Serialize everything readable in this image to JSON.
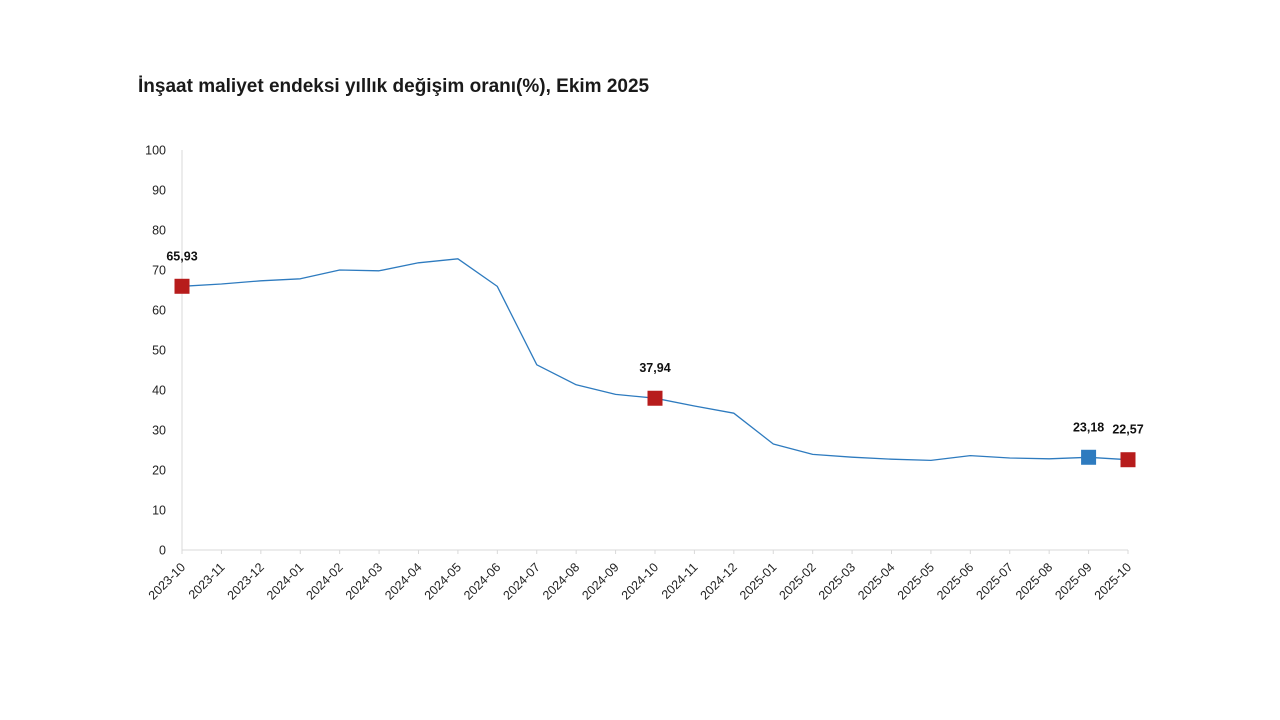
{
  "chart_data": {
    "type": "line",
    "title": "İnşaat maliyet endeksi yıllık değişim oranı(%), Ekim 2025",
    "xlabel": "",
    "ylabel": "",
    "ylim": [
      0,
      100
    ],
    "yticks": [
      "0",
      "10",
      "20",
      "30",
      "40",
      "50",
      "60",
      "70",
      "80",
      "90",
      "100"
    ],
    "grid": false,
    "categories": [
      "2023-10",
      "2023-11",
      "2023-12",
      "2024-01",
      "2024-02",
      "2024-03",
      "2024-04",
      "2024-05",
      "2024-06",
      "2024-07",
      "2024-08",
      "2024-09",
      "2024-10",
      "2024-11",
      "2024-12",
      "2025-01",
      "2025-02",
      "2025-03",
      "2025-04",
      "2025-05",
      "2025-06",
      "2025-07",
      "2025-08",
      "2025-09",
      "2025-10"
    ],
    "series": [
      {
        "name": "Yıllık değişim oranı",
        "color": "#2e7bbf",
        "values": [
          65.93,
          66.5,
          67.3,
          67.8,
          70.0,
          69.8,
          71.8,
          72.8,
          65.9,
          46.3,
          41.3,
          38.9,
          37.94,
          36.0,
          34.2,
          26.5,
          23.9,
          23.2,
          22.7,
          22.4,
          23.6,
          23.0,
          22.8,
          23.18,
          22.57
        ]
      }
    ],
    "highlights": [
      {
        "index": 0,
        "label": "65,93",
        "color": "#b71c1c"
      },
      {
        "index": 12,
        "label": "37,94",
        "color": "#b71c1c"
      },
      {
        "index": 23,
        "label": "23,18",
        "color": "#2e7bbf"
      },
      {
        "index": 24,
        "label": "22,57",
        "color": "#b71c1c"
      }
    ]
  }
}
